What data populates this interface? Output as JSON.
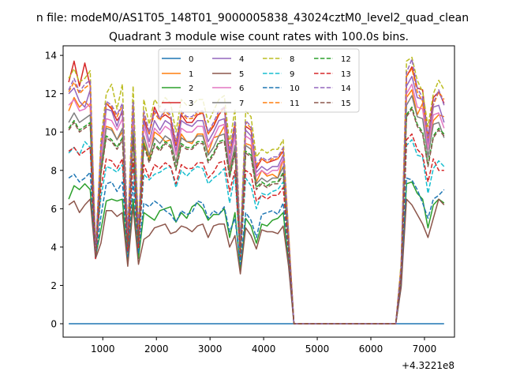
{
  "suptitle": "n file: modeM0/AS1T05_148T01_9000005838_43024cztM0_level2_quad_clean",
  "chart_data": {
    "type": "line",
    "title": "Quadrant 3 module wise count rates with 100.0s bins.",
    "xlabel": "",
    "ylabel": "",
    "x_offset_label": "+4.3221e8",
    "xlim": [
      260,
      7560
    ],
    "ylim": [
      -0.7,
      14.5
    ],
    "xticks": [
      1000,
      2000,
      3000,
      4000,
      5000,
      6000,
      7000
    ],
    "yticks": [
      0,
      2,
      4,
      6,
      8,
      10,
      12,
      14
    ],
    "grid": false,
    "legend": {
      "placement": "upper-center",
      "columns": 4
    },
    "x": [
      365,
      465,
      565,
      665,
      765,
      865,
      965,
      1065,
      1165,
      1265,
      1365,
      1465,
      1565,
      1665,
      1765,
      1865,
      1965,
      2065,
      2165,
      2265,
      2365,
      2465,
      2565,
      2665,
      2765,
      2865,
      2965,
      3065,
      3165,
      3265,
      3365,
      3465,
      3565,
      3665,
      3765,
      3865,
      3965,
      4065,
      4165,
      4265,
      4365,
      4465,
      4565,
      4665,
      6465,
      6565,
      6665,
      6765,
      6865,
      6965,
      7065,
      7165,
      7265,
      7365
    ],
    "series": [
      {
        "name": "0",
        "color": "#1f77b4",
        "dash": "solid",
        "values": [
          0,
          0,
          0,
          0,
          0,
          0,
          0,
          0,
          0,
          0,
          0,
          0,
          0,
          0,
          0,
          0,
          0,
          0,
          0,
          0,
          0,
          0,
          0,
          0,
          0,
          0,
          0,
          0,
          0,
          0,
          0,
          0,
          0,
          0,
          0,
          0,
          0,
          0,
          0,
          0,
          0,
          0,
          0,
          0,
          0,
          0,
          0,
          0,
          0,
          0,
          0,
          0,
          0,
          0
        ]
      },
      {
        "name": "1",
        "color": "#ff7f0e",
        "dash": "solid",
        "values": [
          11.1,
          11.8,
          11.3,
          11.6,
          11.3,
          3.5,
          8,
          10.3,
          10.2,
          9.6,
          10,
          4.2,
          10,
          4.4,
          9.5,
          8.6,
          10,
          9.8,
          9.5,
          9.6,
          8.4,
          9.9,
          9.5,
          9.4,
          9.9,
          9.9,
          8.9,
          9.7,
          9.8,
          10.3,
          8.1,
          9.2,
          3.8,
          9.4,
          9.3,
          7.4,
          8,
          7.7,
          7.8,
          7.6,
          8.6,
          4.4,
          0,
          0,
          0,
          2.8,
          11.8,
          12.2,
          10.9,
          11.5,
          9.2,
          10.6,
          10.9,
          10.8
        ]
      },
      {
        "name": "2",
        "color": "#2ca02c",
        "dash": "solid",
        "values": [
          6.5,
          7.2,
          7,
          7.3,
          7,
          3.5,
          4.9,
          6.4,
          6.5,
          6.4,
          6.5,
          3.2,
          6.5,
          3.4,
          5.8,
          5.6,
          5.4,
          5.9,
          6,
          6.1,
          5.3,
          5.8,
          5.5,
          6.1,
          6.3,
          6,
          5.4,
          5.7,
          5.7,
          6,
          4.5,
          5.8,
          2.8,
          5.5,
          5.1,
          4.2,
          5.2,
          5.1,
          5.4,
          5.5,
          5.8,
          3.2,
          0,
          0,
          0,
          2,
          7.3,
          7.4,
          6.8,
          6.5,
          5,
          6.2,
          6.5,
          6.3
        ]
      },
      {
        "name": "3",
        "color": "#d62728",
        "dash": "solid",
        "values": [
          12.6,
          13.7,
          12.4,
          13.6,
          12.4,
          3.8,
          8.6,
          11.5,
          11.2,
          10.6,
          11,
          4.5,
          11.3,
          4.7,
          10.7,
          9.9,
          11.3,
          10.7,
          10.9,
          10.7,
          9.3,
          10.9,
          10.5,
          10.5,
          10.9,
          11,
          9.9,
          10.3,
          10.9,
          11.3,
          8.9,
          10.3,
          4.1,
          10.3,
          10.1,
          8.1,
          8.6,
          8.4,
          8.5,
          8.6,
          9,
          4.7,
          0,
          0,
          0,
          3,
          12.9,
          13.4,
          12.3,
          12.2,
          9.7,
          11.8,
          12.1,
          11.5
        ]
      },
      {
        "name": "4",
        "color": "#9467bd",
        "dash": "solid",
        "values": [
          12,
          12.3,
          11.6,
          11.3,
          12.2,
          3.5,
          8.9,
          11.2,
          11.1,
          10.3,
          11.2,
          4.4,
          11.2,
          4.5,
          10.6,
          9.5,
          10.6,
          10.1,
          10.6,
          10.4,
          9,
          10.6,
          10.4,
          10.3,
          10.6,
          10.6,
          9.5,
          10,
          10.6,
          10.7,
          8.5,
          10.1,
          3.9,
          10.1,
          9.8,
          7.9,
          8.2,
          8,
          8.2,
          8.2,
          8.8,
          4.5,
          0,
          0,
          0,
          2.9,
          12.4,
          12.9,
          11.8,
          11.7,
          9.4,
          11.3,
          11.4,
          10.5
        ]
      },
      {
        "name": "5",
        "color": "#8c564b",
        "dash": "solid",
        "values": [
          6.2,
          6.4,
          5.8,
          6.2,
          6.5,
          3.4,
          4.2,
          5.9,
          5.9,
          5.6,
          5.8,
          3,
          6.1,
          3.1,
          4.4,
          4.6,
          5,
          5.1,
          5.2,
          4.7,
          4.8,
          5.1,
          5,
          4.8,
          5.1,
          5.2,
          4.5,
          5.1,
          5.2,
          5.2,
          4,
          4.6,
          2.6,
          5,
          4.6,
          3.9,
          4.9,
          4.8,
          4.8,
          4.7,
          5.1,
          3,
          0,
          0,
          0,
          1.9,
          6.5,
          6.2,
          5.7,
          5.2,
          4.5,
          5.5,
          6.5,
          6.2
        ]
      },
      {
        "name": "6",
        "color": "#e377c2",
        "dash": "solid",
        "values": [
          11.4,
          11.7,
          11.1,
          11.2,
          11.5,
          3.6,
          8.7,
          10.7,
          10.6,
          10.1,
          10.7,
          4.3,
          10.6,
          4.4,
          10.3,
          9.2,
          10.2,
          9.9,
          10.3,
          10.1,
          8.8,
          10.2,
          10,
          10,
          10.3,
          10.3,
          9.2,
          9.7,
          10.3,
          10.4,
          8.3,
          9.8,
          3.9,
          9.8,
          9.6,
          7.7,
          8,
          7.8,
          8,
          8,
          8.6,
          4.4,
          0,
          0,
          0,
          2.8,
          12,
          12.5,
          11.3,
          11.2,
          9.1,
          10.9,
          11,
          10.2
        ]
      },
      {
        "name": "7",
        "color": "#7f7f7f",
        "dash": "solid",
        "values": [
          10.5,
          11,
          10.5,
          10.7,
          10.9,
          3.5,
          8.2,
          10.2,
          10.1,
          9.6,
          10.2,
          4.2,
          10.1,
          4.3,
          9.8,
          8.8,
          9.7,
          9.4,
          9.8,
          9.6,
          8.4,
          9.7,
          9.5,
          9.5,
          9.8,
          9.8,
          8.8,
          9.2,
          9.8,
          9.9,
          7.9,
          9.3,
          3.8,
          9.3,
          9.1,
          7.3,
          7.6,
          7.4,
          7.6,
          7.6,
          8.2,
          4.2,
          0,
          0,
          0,
          2.7,
          11.4,
          11.9,
          10.8,
          10.7,
          8.7,
          10.4,
          10.5,
          9.7
        ]
      },
      {
        "name": "8",
        "color": "#bcbd22",
        "dash": "dashed",
        "values": [
          12.8,
          13.3,
          12.6,
          12.8,
          13.2,
          3.8,
          9.6,
          12,
          12.5,
          11.2,
          12.5,
          4.8,
          12.4,
          4.9,
          11.7,
          10.4,
          11.7,
          11.3,
          11.8,
          11.5,
          10,
          11.7,
          11.4,
          11.4,
          11.7,
          11.7,
          10.5,
          11.1,
          11.7,
          11.9,
          9.4,
          11.2,
          4.3,
          11.1,
          10.8,
          8.7,
          9.1,
          8.9,
          9.1,
          9.1,
          9.6,
          4.8,
          0,
          0,
          0,
          3.2,
          13.7,
          13.9,
          12.7,
          12.1,
          10.3,
          12,
          12.7,
          12.2
        ]
      },
      {
        "name": "9",
        "color": "#17becf",
        "dash": "dashed",
        "values": [
          8.9,
          9.2,
          8.8,
          9.5,
          9.2,
          3.6,
          6.6,
          8.2,
          8.1,
          7.9,
          8.3,
          3.9,
          8.4,
          4,
          7.8,
          7.5,
          7.8,
          7.9,
          8.1,
          8.2,
          7.1,
          8,
          7.7,
          8,
          8.2,
          8.1,
          7.3,
          7.6,
          7.8,
          8.1,
          6.3,
          7.8,
          3.4,
          7.6,
          7.2,
          6,
          6.8,
          6.7,
          6.9,
          7,
          7.4,
          3.9,
          0,
          0,
          0,
          2.4,
          9.3,
          9.6,
          8.8,
          8.7,
          6.8,
          8.1,
          8.5,
          8.2
        ]
      },
      {
        "name": "10",
        "color": "#1f77b4",
        "dash": "dashed",
        "values": [
          7.6,
          7.8,
          7.4,
          7.6,
          7.9,
          3.4,
          5.6,
          7.3,
          7.4,
          6.9,
          7.4,
          3.5,
          7.4,
          3.7,
          6.3,
          6.1,
          6.4,
          6.2,
          5.9,
          5.7,
          5.3,
          5.9,
          5.7,
          5.8,
          6.4,
          6.3,
          5.5,
          5.9,
          5.7,
          6.1,
          4.8,
          5.5,
          3.1,
          5.8,
          5.4,
          4.5,
          5.7,
          5.8,
          5.9,
          5.7,
          6.3,
          3.5,
          0,
          0,
          0,
          2.2,
          7.6,
          7.5,
          7,
          6.3,
          5.5,
          6.5,
          6.7,
          7
        ]
      },
      {
        "name": "11",
        "color": "#ff7f0e",
        "dash": "dashed",
        "values": [
          12.1,
          12.6,
          12,
          12.3,
          12.5,
          3.7,
          9.2,
          11.5,
          11.3,
          10.8,
          11.4,
          4.6,
          11.5,
          4.7,
          11,
          9.9,
          11,
          10.6,
          11.1,
          10.8,
          9.4,
          11,
          10.7,
          10.7,
          11,
          11,
          9.9,
          10.4,
          11,
          11.2,
          8.9,
          10.5,
          4.1,
          10.5,
          10.2,
          8.2,
          8.6,
          8.4,
          8.6,
          8.6,
          9.1,
          4.6,
          0,
          0,
          0,
          3,
          12.9,
          13.3,
          12.1,
          11.6,
          9.7,
          11.4,
          12.1,
          11.7
        ]
      },
      {
        "name": "12",
        "color": "#2ca02c",
        "dash": "dashed",
        "values": [
          10.2,
          10.6,
          10.1,
          10.3,
          10.5,
          3.5,
          7.9,
          9.8,
          9.6,
          9.2,
          9.7,
          4.1,
          9.8,
          4.2,
          9.4,
          8.5,
          9.4,
          9.1,
          9.5,
          9.3,
          8.1,
          9.4,
          9.2,
          9.2,
          9.5,
          9.5,
          8.5,
          8.9,
          9.5,
          9.6,
          7.7,
          9,
          3.7,
          9,
          8.8,
          7.1,
          7.4,
          7.2,
          7.4,
          7.4,
          7.9,
          4.1,
          0,
          0,
          0,
          2.6,
          10.9,
          11.3,
          10.4,
          10,
          8.3,
          9.8,
          10.2,
          9.9
        ]
      },
      {
        "name": "13",
        "color": "#d62728",
        "dash": "dashed",
        "values": [
          9,
          9.2,
          8.8,
          9,
          9.2,
          3.4,
          7.1,
          8.6,
          8.5,
          8.1,
          8.6,
          3.8,
          8.6,
          3.9,
          8.3,
          7.6,
          8.3,
          8.1,
          8.4,
          8.2,
          7.3,
          8.3,
          8.1,
          8.1,
          8.4,
          8.4,
          7.6,
          7.9,
          8.4,
          8.5,
          6.9,
          8,
          3.5,
          8,
          7.8,
          6.4,
          6.7,
          6.5,
          6.7,
          6.7,
          7.1,
          3.8,
          0,
          0,
          0,
          2.4,
          9.6,
          9.9,
          9.1,
          8.8,
          7.4,
          8.6,
          8,
          8
        ]
      },
      {
        "name": "14",
        "color": "#9467bd",
        "dash": "dashed",
        "values": [
          12.2,
          12.8,
          12.1,
          12.5,
          12.7,
          3.7,
          9.3,
          11.6,
          11.4,
          10.9,
          11.5,
          4.7,
          11.6,
          4.8,
          11.1,
          10,
          11.1,
          10.7,
          11.2,
          10.9,
          9.5,
          11.1,
          10.8,
          10.8,
          11.1,
          11.1,
          10,
          10.5,
          11.1,
          11.3,
          9,
          10.6,
          4.1,
          10.6,
          10.3,
          8.3,
          8.7,
          8.5,
          8.7,
          8.7,
          9.2,
          4.6,
          0,
          0,
          0,
          3,
          13.1,
          13.8,
          12.3,
          11.8,
          9.8,
          11.5,
          12.2,
          11.4
        ]
      },
      {
        "name": "15",
        "color": "#8c564b",
        "dash": "dashed",
        "values": [
          10.1,
          10.5,
          10,
          10.2,
          10.4,
          3.5,
          7.8,
          9.7,
          9.5,
          9.1,
          9.6,
          4.1,
          9.7,
          4.2,
          9.3,
          8.4,
          9.3,
          9,
          9.4,
          9.2,
          8,
          9.3,
          9.1,
          9.1,
          9.4,
          9.4,
          8.4,
          8.8,
          9.4,
          9.5,
          7.6,
          8.9,
          3.7,
          8.9,
          8.7,
          7,
          7.3,
          7.1,
          7.3,
          7.3,
          7.8,
          4.1,
          0,
          0,
          0,
          2.6,
          10.8,
          11.2,
          10.3,
          9.9,
          8.2,
          9.7,
          10.1,
          9.8
        ]
      }
    ]
  }
}
